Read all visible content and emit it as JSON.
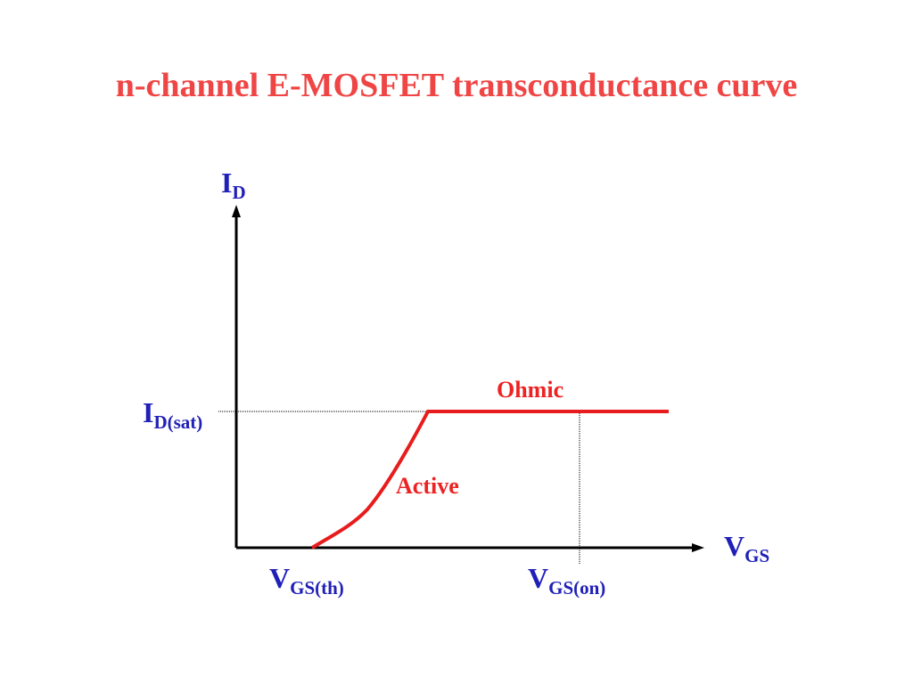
{
  "title": "n-channel E-MOSFET transconductance curve",
  "y_axis": {
    "main": "I",
    "sub": "D"
  },
  "x_axis": {
    "main": "V",
    "sub": "GS"
  },
  "levels": [
    {
      "main": "I",
      "sub": "D(sat)"
    },
    {
      "main": "V",
      "sub": "GS(th)"
    },
    {
      "main": "V",
      "sub": "GS(on)"
    }
  ],
  "regions": [
    "Ohmic",
    "Active"
  ]
}
